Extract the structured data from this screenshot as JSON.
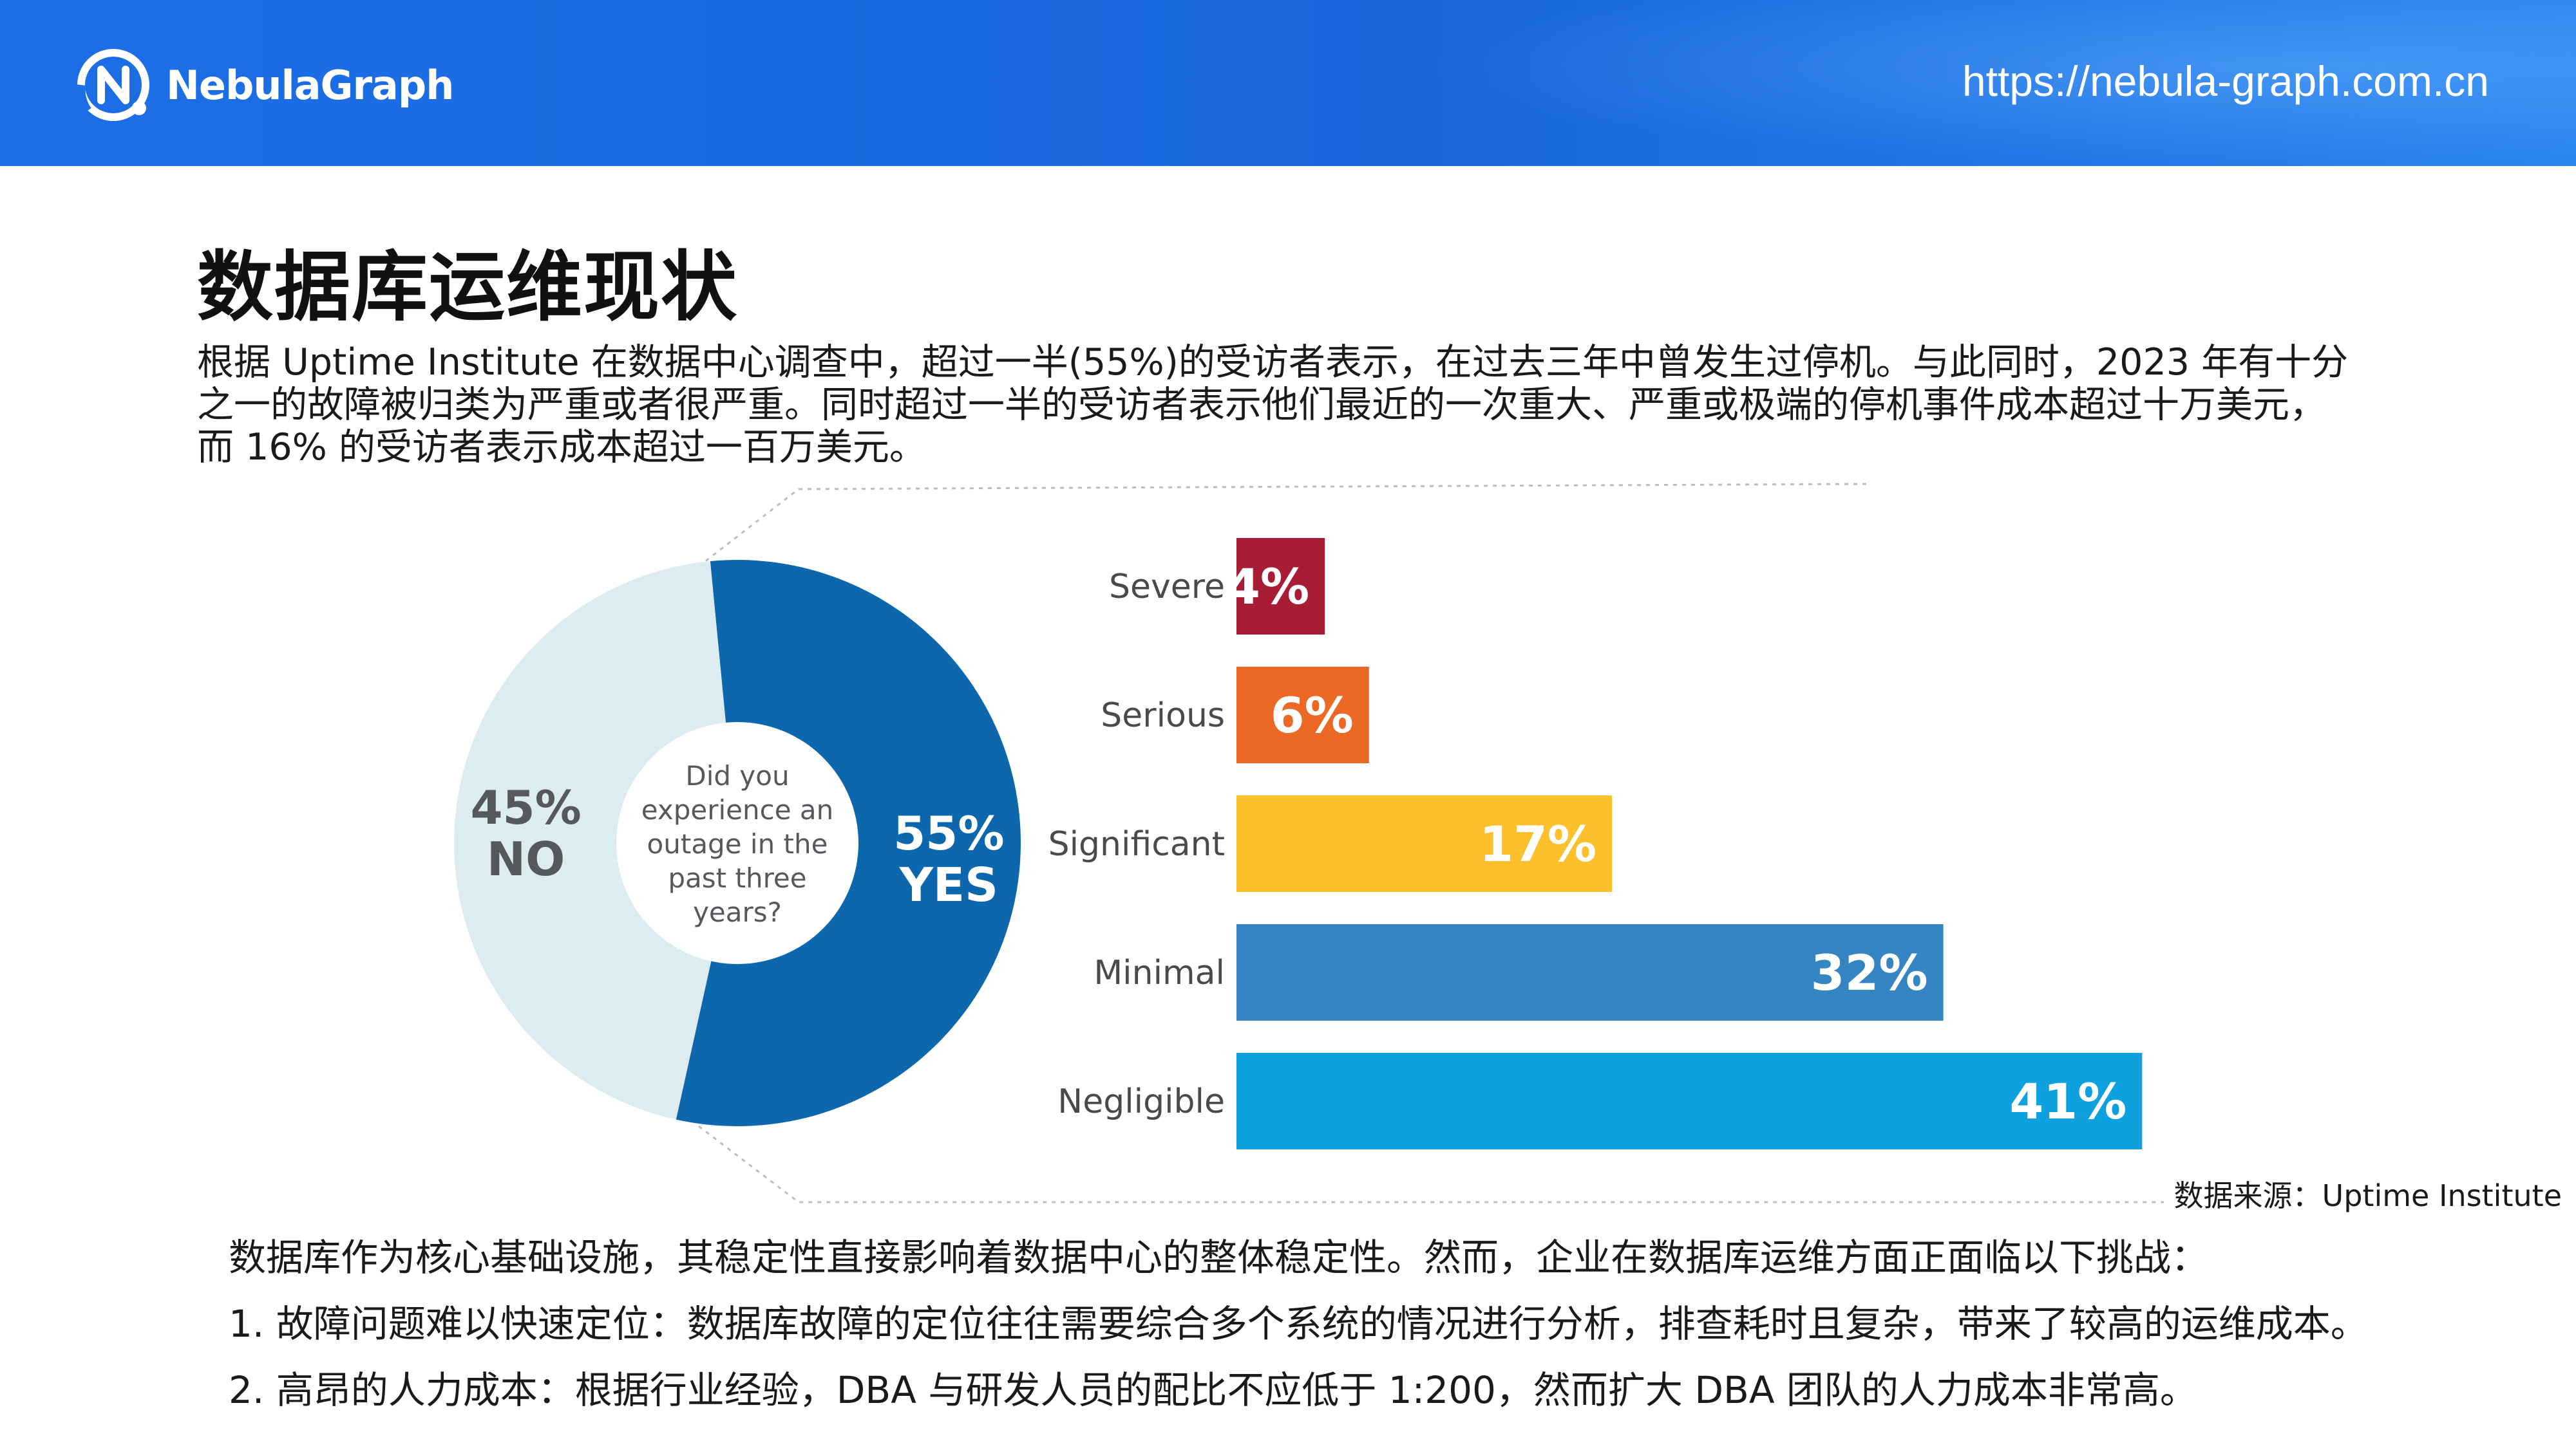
{
  "header": {
    "brand": "NebulaGraph",
    "url": "https://nebula-graph.com.cn",
    "colors": {
      "accent": "#1d6fe6"
    }
  },
  "page": {
    "title": "数据库运维现状",
    "intro_lines": [
      "根据 Uptime Institute 在数据中心调查中，超过一半(55%)的受访者表示，在过去三年中曾发生过停机。与此同时，2023 年有十分",
      "之一的故障被归类为严重或者很严重。同时超过一半的受访者表示他们最近的一次重大、严重或极端的停机事件成本超过十万美元，",
      "而 16% 的受访者表示成本超过一百万美元。"
    ],
    "source": "数据来源：Uptime Institute",
    "body": [
      "数据库作为核心基础设施，其稳定性直接影响着数据中心的整体稳定性。然而，企业在数据库运维方面正面临以下挑战：",
      "1. 故障问题难以快速定位：数据库故障的定位往往需要综合多个系统的情况进行分析，排查耗时且复杂，带来了较高的运维成本。",
      "2. 高昂的人力成本：根据行业经验，DBA 与研发人员的配比不应低于 1:200，然而扩大 DBA 团队的人力成本非常高。"
    ]
  },
  "chart_data": [
    {
      "type": "pie",
      "center_text": [
        "Did you",
        "experience an",
        "outage in the",
        "past three",
        "years?"
      ],
      "slices": [
        {
          "pct_label": "55%",
          "label": "YES",
          "value": 55,
          "color": "#0d67ad",
          "text_color": "#ffffff"
        },
        {
          "pct_label": "45%",
          "label": "NO",
          "value": 45,
          "color": "#dcecf0",
          "text_color": "#55595e"
        }
      ]
    },
    {
      "type": "bar",
      "orientation": "horizontal",
      "categories": [
        "Severe",
        "Serious",
        "Significant",
        "Minimal",
        "Negligible"
      ],
      "values": [
        4,
        6,
        17,
        32,
        41
      ],
      "value_labels": [
        "4%",
        "6%",
        "17%",
        "32%",
        "41%"
      ],
      "colors": [
        "#a81c35",
        "#ea6a25",
        "#fcc02c",
        "#3485c2",
        "#0fa0e0"
      ]
    }
  ]
}
